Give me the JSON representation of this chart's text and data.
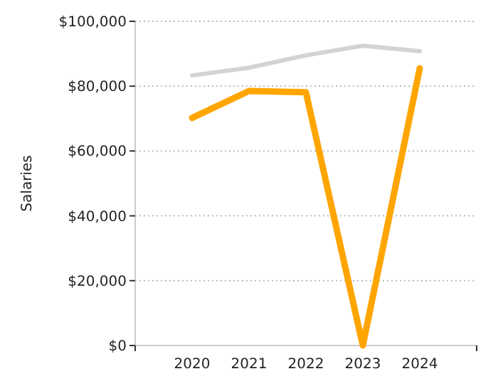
{
  "chart_data": {
    "type": "line",
    "ylabel": "Salaries",
    "x": [
      2020,
      2021,
      2022,
      2023,
      2024
    ],
    "series": [
      {
        "color": "#d3d3d3",
        "values": [
          83300,
          85700,
          89500,
          92500,
          90800
        ]
      },
      {
        "color": "#ffa500",
        "values": [
          70200,
          78500,
          78100,
          0,
          85500
        ]
      }
    ],
    "xlim": [
      2019,
      2025
    ],
    "xticks": [
      2020,
      2021,
      2022,
      2023,
      2024
    ],
    "ylim": [
      0,
      100000
    ],
    "yticks": [
      {
        "value": 0,
        "label": "$0"
      },
      {
        "value": 20000,
        "label": "$20,000"
      },
      {
        "value": 40000,
        "label": "$40,000"
      },
      {
        "value": 60000,
        "label": "$60,000"
      },
      {
        "value": 80000,
        "label": "$80,000"
      },
      {
        "value": 100000,
        "label": "$100,000"
      }
    ],
    "grid": "y"
  }
}
